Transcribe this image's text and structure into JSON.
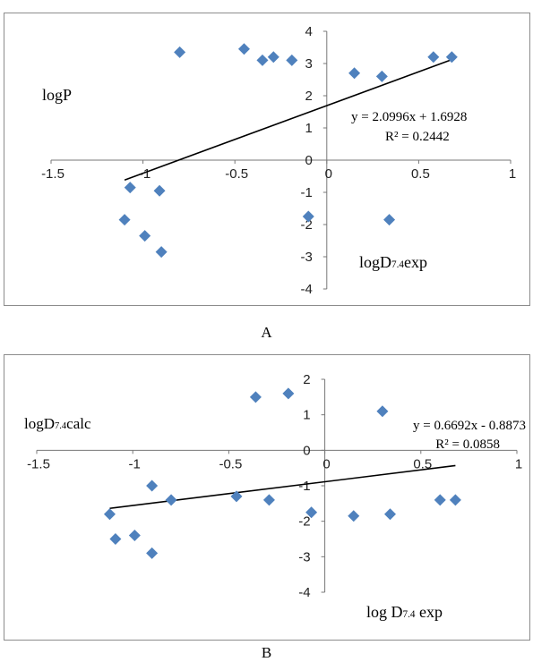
{
  "chart_data": [
    {
      "panel_label": "A",
      "type": "scatter",
      "ylabel": "logP",
      "xlabel_main": "logD",
      "xlabel_sub": "7.4",
      "xlabel_suffix": "exp",
      "xlim": [
        -1.5,
        1
      ],
      "ylim": [
        -4,
        4
      ],
      "x_ticks": [
        -1.5,
        -1,
        -0.5,
        0,
        0.5,
        1
      ],
      "y_ticks": [
        -4,
        -3,
        -2,
        -1,
        0,
        1,
        2,
        3,
        4
      ],
      "x_tick_labels": [
        "-1.5",
        "-1",
        "-0.5",
        "0",
        "0.5",
        "1"
      ],
      "y_tick_labels": [
        "-4",
        "-3",
        "-2",
        "-1",
        "0",
        "1",
        "2",
        "3",
        "4"
      ],
      "grid": false,
      "marker": "diamond",
      "marker_color": "#4f81bd",
      "trendline_color": "#000000",
      "equation": "y = 2.0996x + 1.6928",
      "r_squared": "R² = 0.2442",
      "trendline": {
        "slope": 2.0996,
        "intercept": 1.6928,
        "x_range": [
          -1.1,
          0.68
        ]
      },
      "points": [
        {
          "x": -0.8,
          "y": 3.35
        },
        {
          "x": -0.45,
          "y": 3.45
        },
        {
          "x": -0.35,
          "y": 3.1
        },
        {
          "x": -0.29,
          "y": 3.2
        },
        {
          "x": -0.19,
          "y": 3.1
        },
        {
          "x": 0.15,
          "y": 2.7
        },
        {
          "x": 0.3,
          "y": 2.6
        },
        {
          "x": 0.58,
          "y": 3.2
        },
        {
          "x": 0.68,
          "y": 3.2
        },
        {
          "x": -1.07,
          "y": -0.85
        },
        {
          "x": -0.91,
          "y": -0.95
        },
        {
          "x": -1.1,
          "y": -1.85
        },
        {
          "x": -0.1,
          "y": -1.75
        },
        {
          "x": 0.34,
          "y": -1.85
        },
        {
          "x": -0.99,
          "y": -2.35
        },
        {
          "x": -0.9,
          "y": -2.85
        }
      ]
    },
    {
      "panel_label": "B",
      "type": "scatter",
      "ylabel_main": "logD",
      "ylabel_sub": "7.4",
      "ylabel_suffix": "calc",
      "xlabel_main": "log D",
      "xlabel_sub": "7.4",
      "xlabel_suffix": " exp",
      "xlim": [
        -1.5,
        1
      ],
      "ylim": [
        -4,
        2
      ],
      "x_ticks": [
        -1.5,
        -1,
        -0.5,
        0,
        0.5,
        1
      ],
      "y_ticks": [
        -4,
        -3,
        -2,
        -1,
        0,
        1,
        2
      ],
      "x_tick_labels": [
        "-1.5",
        "-1",
        "-0.5",
        "0",
        "0.5",
        "1"
      ],
      "y_tick_labels": [
        "-4",
        "-3",
        "-2",
        "-1",
        "0",
        "1",
        "2"
      ],
      "grid": false,
      "marker": "diamond",
      "marker_color": "#4f81bd",
      "trendline_color": "#000000",
      "equation": "y = 0.6692x - 0.8873",
      "r_squared": "R² = 0.0858",
      "trendline": {
        "slope": 0.6692,
        "intercept": -0.8873,
        "x_range": [
          -1.12,
          0.68
        ]
      },
      "points": [
        {
          "x": -0.36,
          "y": 1.5
        },
        {
          "x": -0.19,
          "y": 1.6
        },
        {
          "x": 0.3,
          "y": 1.1
        },
        {
          "x": -0.9,
          "y": -1.0
        },
        {
          "x": -0.8,
          "y": -1.4
        },
        {
          "x": -0.46,
          "y": -1.3
        },
        {
          "x": -0.29,
          "y": -1.4
        },
        {
          "x": -1.12,
          "y": -1.8
        },
        {
          "x": -0.07,
          "y": -1.75
        },
        {
          "x": 0.15,
          "y": -1.85
        },
        {
          "x": 0.34,
          "y": -1.8
        },
        {
          "x": 0.6,
          "y": -1.4
        },
        {
          "x": 0.68,
          "y": -1.4
        },
        {
          "x": -1.09,
          "y": -2.5
        },
        {
          "x": -0.99,
          "y": -2.4
        },
        {
          "x": -0.9,
          "y": -2.9
        }
      ]
    }
  ]
}
